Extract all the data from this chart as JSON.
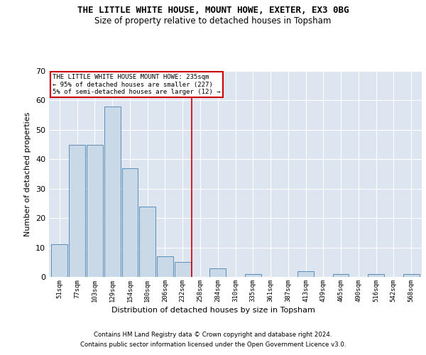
{
  "title": "THE LITTLE WHITE HOUSE, MOUNT HOWE, EXETER, EX3 0BG",
  "subtitle": "Size of property relative to detached houses in Topsham",
  "xlabel": "Distribution of detached houses by size in Topsham",
  "ylabel": "Number of detached properties",
  "bar_values": [
    11,
    45,
    45,
    58,
    37,
    24,
    7,
    5,
    0,
    3,
    0,
    1,
    0,
    0,
    2,
    0,
    1,
    0,
    1,
    0,
    1
  ],
  "bar_labels": [
    "51sqm",
    "77sqm",
    "103sqm",
    "129sqm",
    "154sqm",
    "180sqm",
    "206sqm",
    "232sqm",
    "258sqm",
    "284sqm",
    "310sqm",
    "335sqm",
    "361sqm",
    "387sqm",
    "413sqm",
    "439sqm",
    "465sqm",
    "490sqm",
    "516sqm",
    "542sqm",
    "568sqm"
  ],
  "bar_color": "#c9d9e8",
  "bar_edge_color": "#5b8db8",
  "vline_index": 7.5,
  "annotation_box_text": "THE LITTLE WHITE HOUSE MOUNT HOWE: 235sqm\n← 95% of detached houses are smaller (227)\n5% of semi-detached houses are larger (12) →",
  "vline_color": "#cc0000",
  "background_color": "#dde6f0",
  "grid_color": "#ffffff",
  "footer_line1": "Contains HM Land Registry data © Crown copyright and database right 2024.",
  "footer_line2": "Contains public sector information licensed under the Open Government Licence v3.0.",
  "ylim": [
    0,
    70
  ],
  "yticks": [
    0,
    10,
    20,
    30,
    40,
    50,
    60,
    70
  ]
}
